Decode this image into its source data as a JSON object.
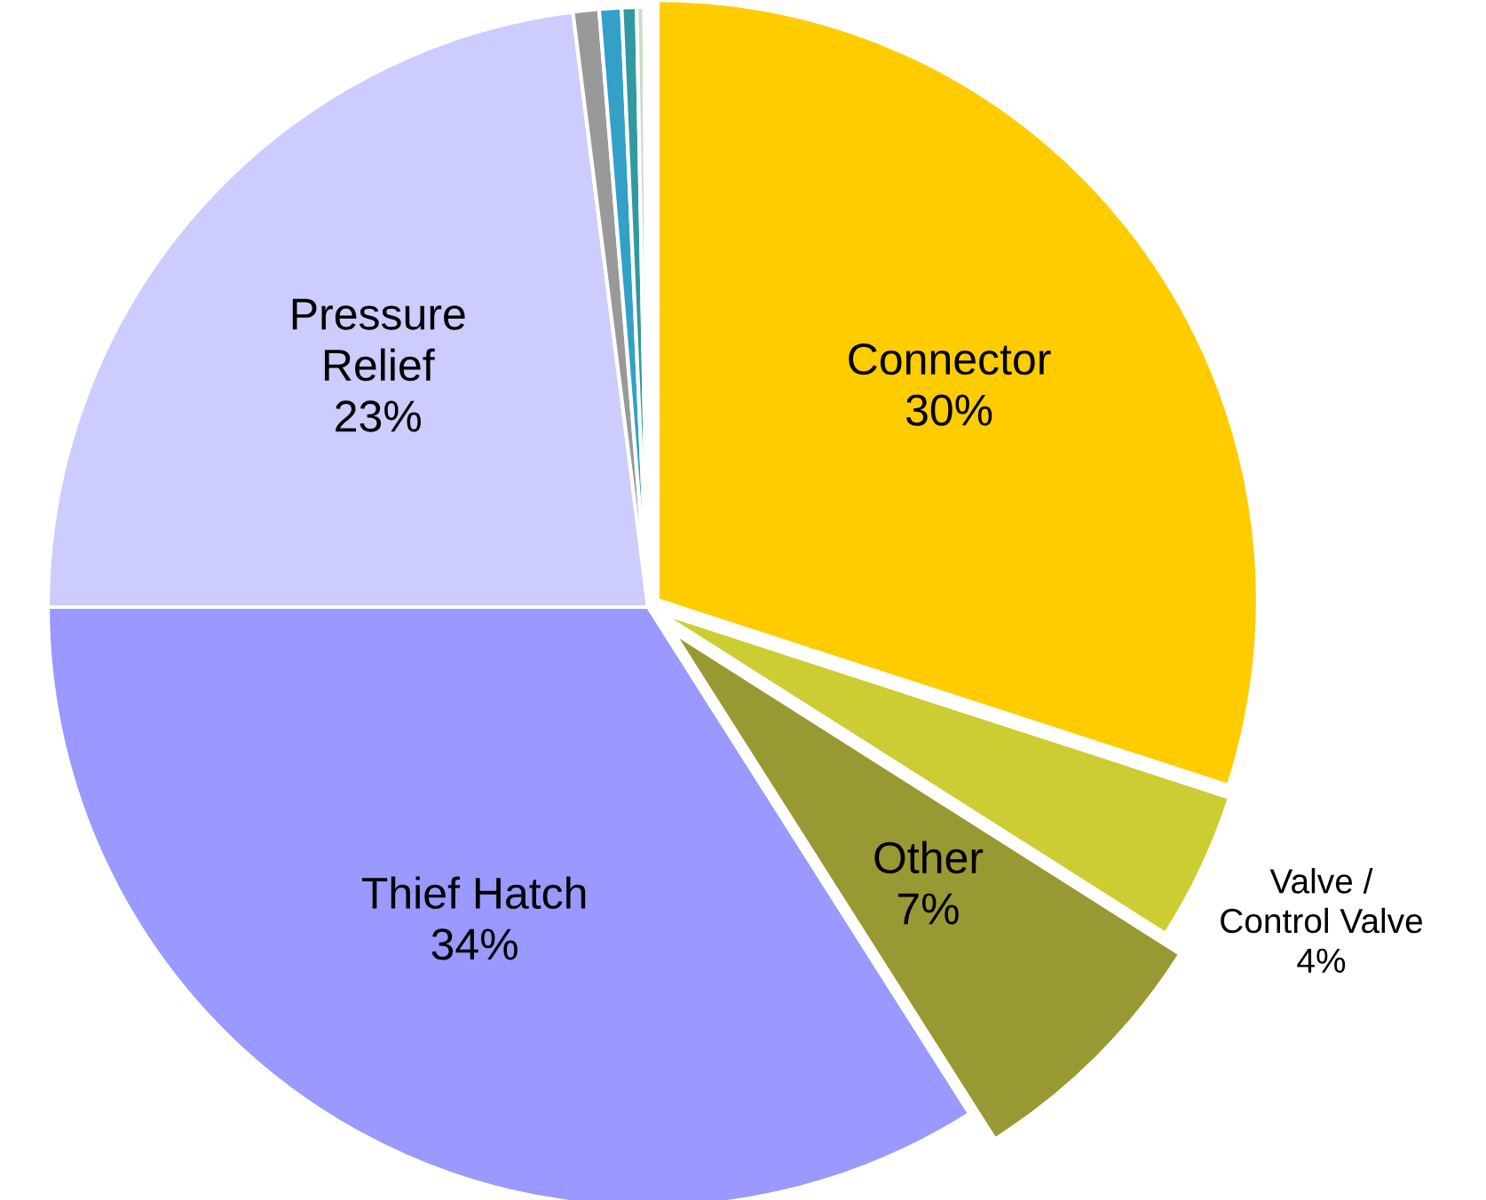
{
  "chart_data": {
    "type": "pie",
    "categories": [
      "Connector",
      "Valve /\nControl Valve",
      "Other",
      "Thief Hatch",
      "Pressure\nRelief",
      null,
      null,
      null,
      null,
      null
    ],
    "values": [
      30,
      4,
      7,
      34,
      23,
      0.7,
      0.6,
      0.4,
      0.2,
      0.1
    ],
    "colors": [
      "#ffcc00",
      "#cccc33",
      "#999933",
      "#9999ff",
      "#ccccff",
      "#999999",
      "#33a0c8",
      "#3399a0",
      "#c8dcc8",
      "#a0c878"
    ],
    "value_labels": [
      "30%",
      "4%",
      "7%",
      "34%",
      "23%",
      null,
      null,
      null,
      null,
      null
    ]
  }
}
